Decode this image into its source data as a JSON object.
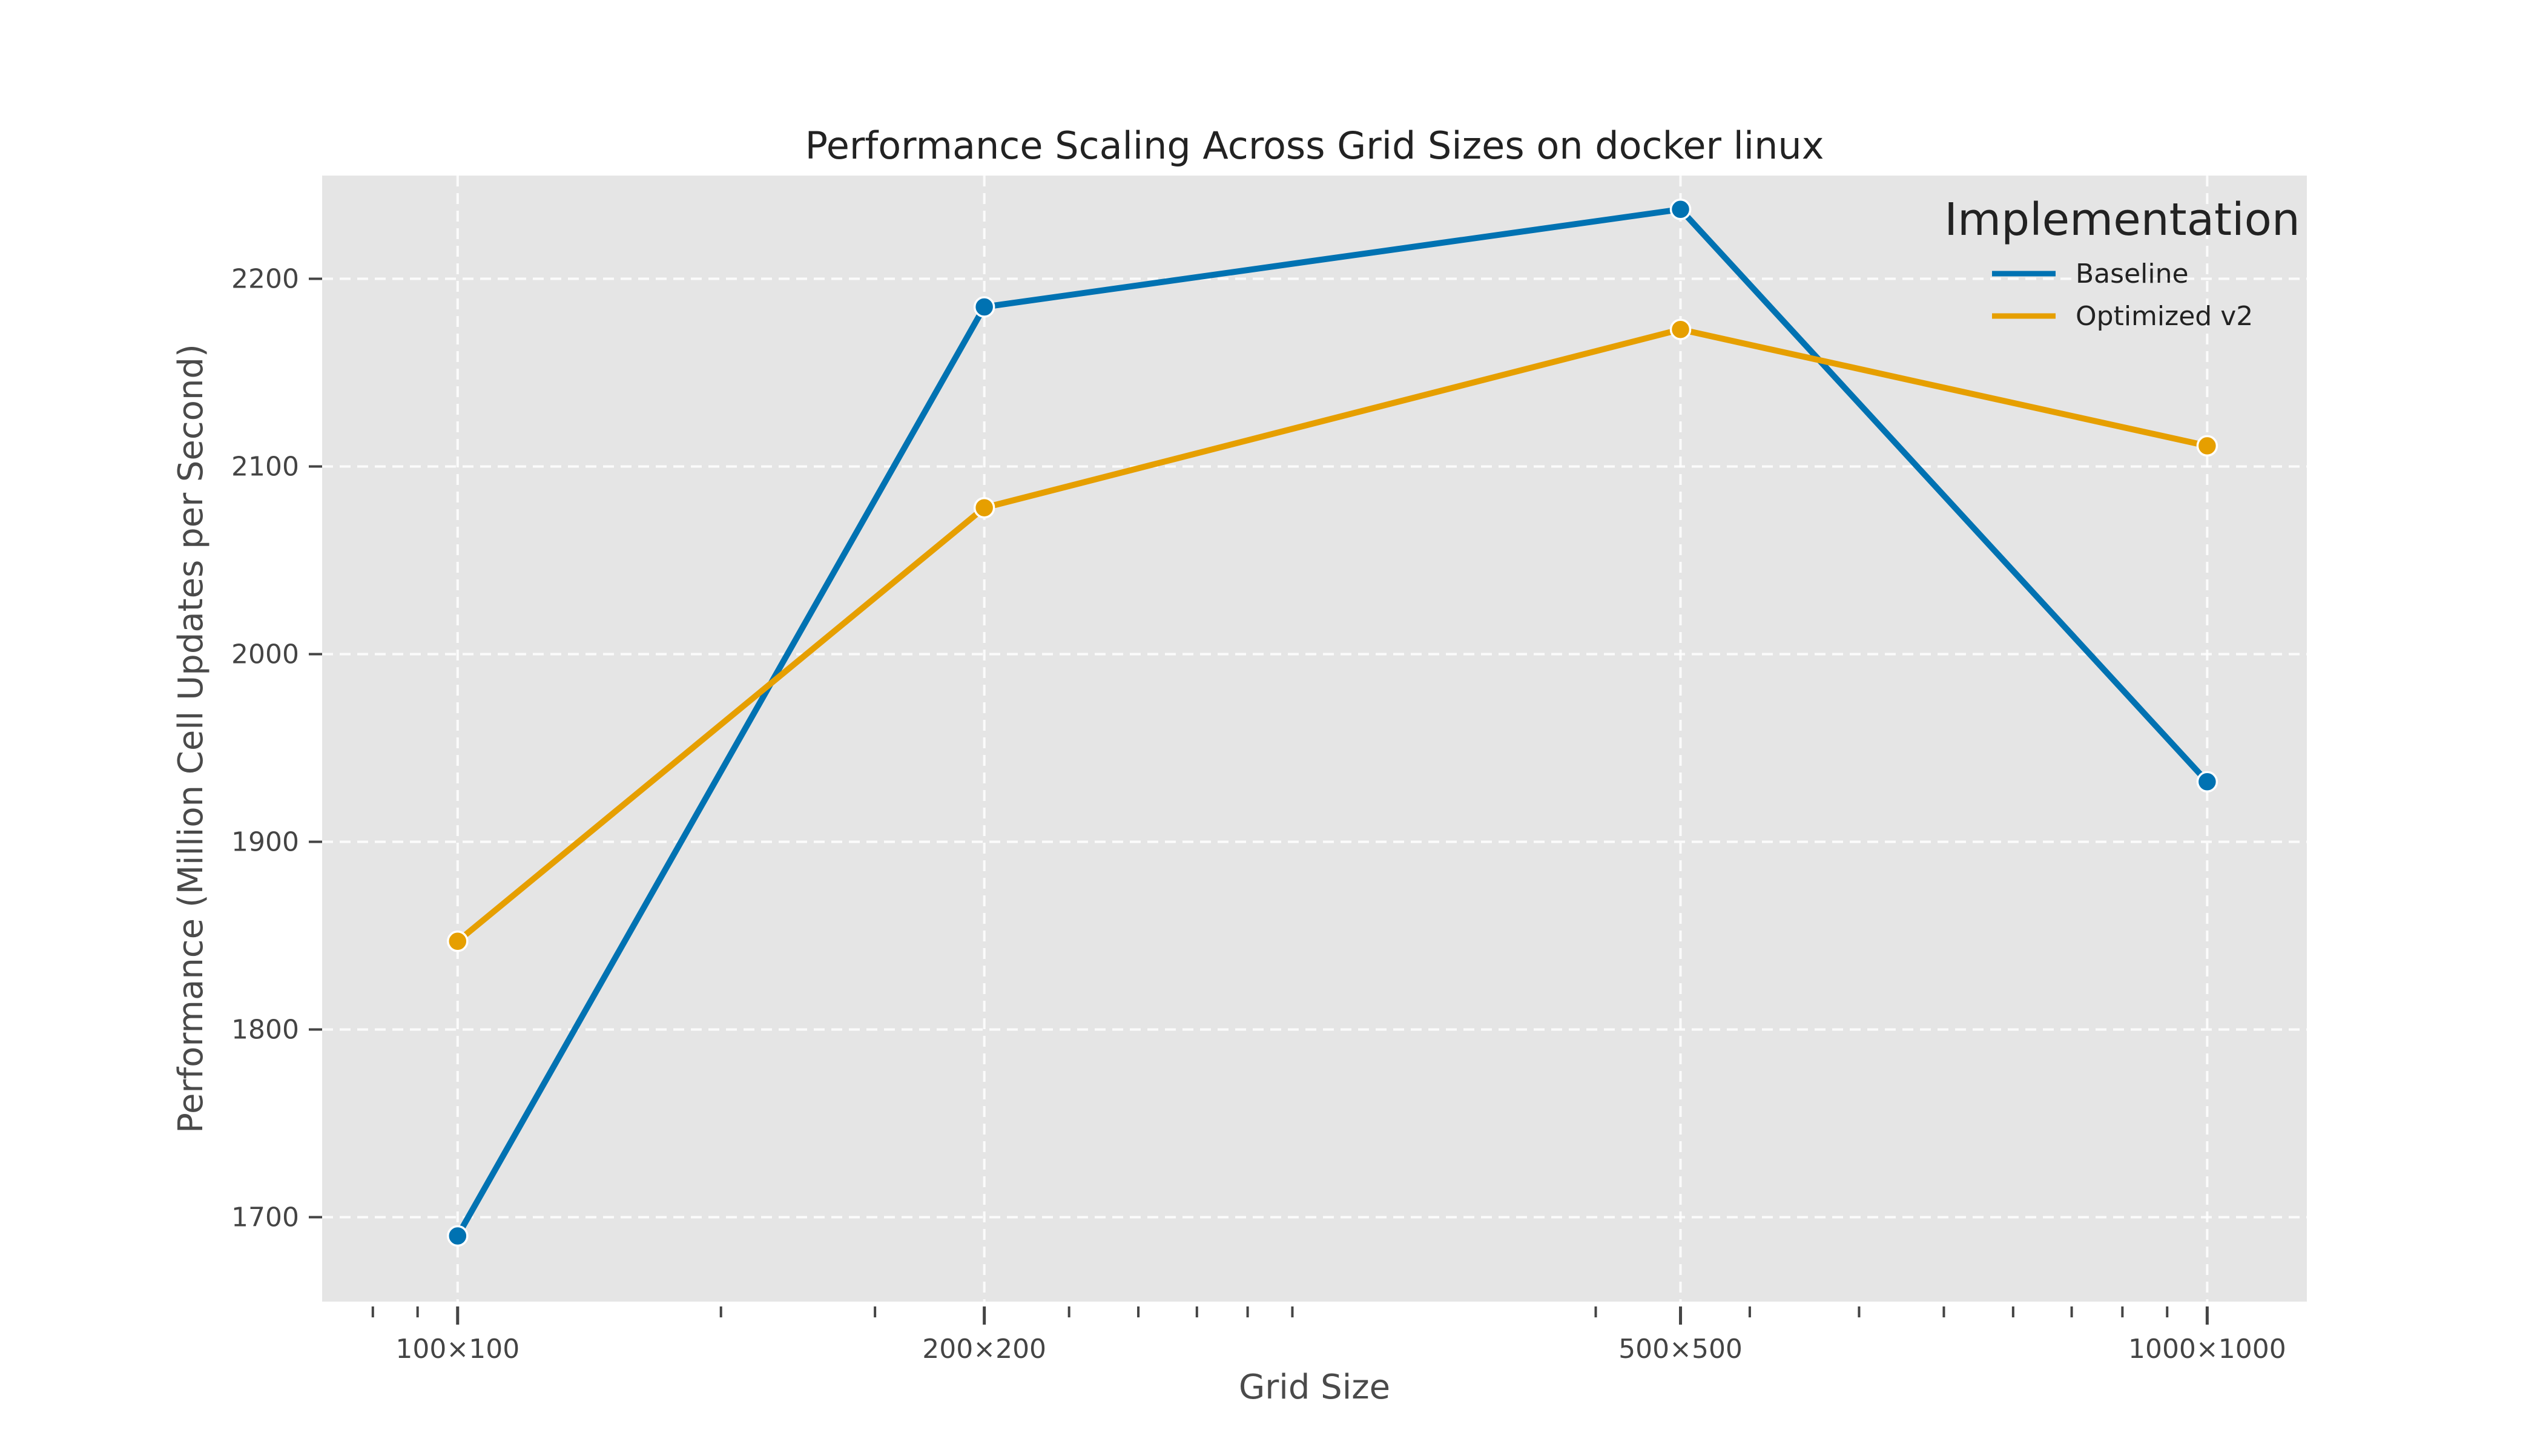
{
  "chart_data": {
    "type": "line",
    "title": "Performance Scaling Across Grid Sizes on docker linux",
    "xlabel": "Grid Size",
    "ylabel": "Performance (Million Cell Updates per Second)",
    "x_scale": "log",
    "x": [
      10000,
      40000,
      250000,
      1000000
    ],
    "categories": [
      "100×100",
      "200×200",
      "500×500",
      "1000×1000"
    ],
    "xlim": [
      7000,
      1300000
    ],
    "ylim": [
      1655,
      2255
    ],
    "yticks": [
      1700,
      1800,
      1900,
      2000,
      2100,
      2200
    ],
    "grid": true,
    "legend": {
      "title": "Implementation",
      "placement": "top-right"
    },
    "series": [
      {
        "name": "Baseline",
        "color": "#0072B2",
        "values": [
          1690,
          2185,
          2237,
          1932
        ]
      },
      {
        "name": "Optimized v2",
        "color": "#E69F00",
        "values": [
          1847,
          2078,
          2173,
          2111
        ]
      }
    ]
  }
}
